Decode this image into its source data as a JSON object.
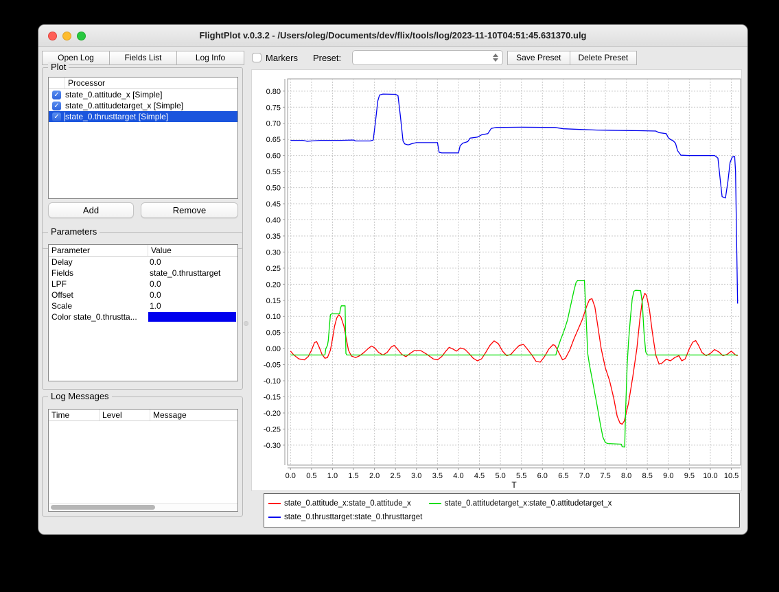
{
  "window": {
    "title": "FlightPlot v.0.3.2 - /Users/oleg/Documents/dev/flix/tools/log/2023-11-10T04:51:45.631370.ulg"
  },
  "toolbar": {
    "open_log": "Open Log",
    "fields_list": "Fields List",
    "log_info": "Log Info",
    "markers_label": "Markers",
    "markers_checked": false,
    "preset_label": "Preset:",
    "preset_value": "",
    "save_preset": "Save Preset",
    "delete_preset": "Delete Preset"
  },
  "plot_panel": {
    "title": "Plot",
    "column_header": "Processor",
    "rows": [
      {
        "checked": true,
        "label": "state_0.attitude_x [Simple]",
        "selected": false
      },
      {
        "checked": true,
        "label": "state_0.attitudetarget_x [Simple]",
        "selected": false
      },
      {
        "checked": true,
        "label": "state_0.thrusttarget [Simple]",
        "selected": true
      }
    ],
    "add_button": "Add",
    "remove_button": "Remove"
  },
  "parameters_panel": {
    "title": "Parameters",
    "columns": [
      "Parameter",
      "Value"
    ],
    "rows": [
      {
        "parameter": "Delay",
        "value": "0.0"
      },
      {
        "parameter": "Fields",
        "value": "state_0.thrusttarget"
      },
      {
        "parameter": "LPF",
        "value": "0.0"
      },
      {
        "parameter": "Offset",
        "value": "0.0"
      },
      {
        "parameter": "Scale",
        "value": "1.0"
      },
      {
        "parameter": "Color state_0.thrustta...",
        "value": "",
        "color_swatch": "#0000ee"
      }
    ]
  },
  "log_messages_panel": {
    "title": "Log Messages",
    "columns": [
      "Time",
      "Level",
      "Message"
    ],
    "rows": []
  },
  "legend": {
    "items": [
      {
        "label": "state_0.attitude_x:state_0.attitude_x",
        "color": "#ff0000"
      },
      {
        "label": "state_0.attitudetarget_x:state_0.attitudetarget_x",
        "color": "#00dd00"
      },
      {
        "label": "state_0.thrusttarget:state_0.thrusttarget",
        "color": "#0000ee"
      }
    ]
  },
  "colors": {
    "selection_blue": "#1b55dd",
    "checkbox_blue": "#2f64dd",
    "grid": "#c9c9c9",
    "axis": "#9a9a9a"
  },
  "chart_data": {
    "type": "line",
    "title": "",
    "xlabel": "T",
    "ylabel": "",
    "grid": true,
    "legend_position": "bottom",
    "xlim": [
      -0.07,
      10.72
    ],
    "ylim": [
      -0.362,
      0.838
    ],
    "xticks": [
      0.0,
      0.5,
      1.0,
      1.5,
      2.0,
      2.5,
      3.0,
      3.5,
      4.0,
      4.5,
      5.0,
      5.5,
      6.0,
      6.5,
      7.0,
      7.5,
      8.0,
      8.5,
      9.0,
      9.5,
      10.0,
      10.5
    ],
    "yticks": [
      -0.3,
      -0.25,
      -0.2,
      -0.15,
      -0.1,
      -0.05,
      0.0,
      0.05,
      0.1,
      0.15,
      0.2,
      0.25,
      0.3,
      0.35,
      0.4,
      0.45,
      0.5,
      0.55,
      0.6,
      0.65,
      0.7,
      0.75,
      0.8
    ],
    "series": [
      {
        "name": "state_0.attitude_x:state_0.attitude_x",
        "color": "#ff0000",
        "points": [
          [
            0,
            -0.008
          ],
          [
            0.08,
            -0.02
          ],
          [
            0.2,
            -0.032
          ],
          [
            0.33,
            -0.035
          ],
          [
            0.42,
            -0.025
          ],
          [
            0.5,
            -0.005
          ],
          [
            0.57,
            0.018
          ],
          [
            0.62,
            0.022
          ],
          [
            0.68,
            0.005
          ],
          [
            0.75,
            -0.018
          ],
          [
            0.82,
            -0.03
          ],
          [
            0.88,
            -0.028
          ],
          [
            0.95,
            -0.005
          ],
          [
            1.0,
            0.03
          ],
          [
            1.05,
            0.07
          ],
          [
            1.1,
            0.095
          ],
          [
            1.15,
            0.105
          ],
          [
            1.2,
            0.098
          ],
          [
            1.27,
            0.07
          ],
          [
            1.33,
            0.03
          ],
          [
            1.38,
            -0.005
          ],
          [
            1.45,
            -0.023
          ],
          [
            1.55,
            -0.028
          ],
          [
            1.65,
            -0.022
          ],
          [
            1.75,
            -0.012
          ],
          [
            1.85,
            0.0
          ],
          [
            1.93,
            0.008
          ],
          [
            2.0,
            0.003
          ],
          [
            2.1,
            -0.012
          ],
          [
            2.2,
            -0.02
          ],
          [
            2.3,
            -0.012
          ],
          [
            2.4,
            0.005
          ],
          [
            2.47,
            0.01
          ],
          [
            2.55,
            -0.002
          ],
          [
            2.65,
            -0.018
          ],
          [
            2.75,
            -0.025
          ],
          [
            2.85,
            -0.015
          ],
          [
            2.95,
            -0.006
          ],
          [
            3.1,
            -0.006
          ],
          [
            3.25,
            -0.018
          ],
          [
            3.4,
            -0.032
          ],
          [
            3.5,
            -0.035
          ],
          [
            3.6,
            -0.025
          ],
          [
            3.7,
            -0.008
          ],
          [
            3.78,
            0.004
          ],
          [
            3.88,
            -0.002
          ],
          [
            3.95,
            -0.008
          ],
          [
            4.05,
            0.002
          ],
          [
            4.15,
            -0.002
          ],
          [
            4.25,
            -0.015
          ],
          [
            4.35,
            -0.03
          ],
          [
            4.45,
            -0.038
          ],
          [
            4.55,
            -0.032
          ],
          [
            4.65,
            -0.012
          ],
          [
            4.75,
            0.01
          ],
          [
            4.85,
            0.024
          ],
          [
            4.95,
            0.015
          ],
          [
            5.05,
            -0.008
          ],
          [
            5.15,
            -0.022
          ],
          [
            5.25,
            -0.018
          ],
          [
            5.35,
            -0.003
          ],
          [
            5.45,
            0.01
          ],
          [
            5.55,
            0.013
          ],
          [
            5.65,
            -0.003
          ],
          [
            5.75,
            -0.02
          ],
          [
            5.85,
            -0.04
          ],
          [
            5.95,
            -0.042
          ],
          [
            6.05,
            -0.025
          ],
          [
            6.15,
            -0.002
          ],
          [
            6.25,
            0.012
          ],
          [
            6.3,
            0.01
          ],
          [
            6.4,
            -0.015
          ],
          [
            6.48,
            -0.035
          ],
          [
            6.55,
            -0.03
          ],
          [
            6.65,
            -0.005
          ],
          [
            6.75,
            0.03
          ],
          [
            6.85,
            0.06
          ],
          [
            6.95,
            0.09
          ],
          [
            7.05,
            0.13
          ],
          [
            7.12,
            0.152
          ],
          [
            7.18,
            0.155
          ],
          [
            7.25,
            0.13
          ],
          [
            7.32,
            0.07
          ],
          [
            7.4,
            0.0
          ],
          [
            7.5,
            -0.06
          ],
          [
            7.6,
            -0.1
          ],
          [
            7.7,
            -0.155
          ],
          [
            7.78,
            -0.21
          ],
          [
            7.85,
            -0.232
          ],
          [
            7.9,
            -0.235
          ],
          [
            7.95,
            -0.225
          ],
          [
            8.05,
            -0.17
          ],
          [
            8.15,
            -0.09
          ],
          [
            8.25,
            0.0
          ],
          [
            8.32,
            0.09
          ],
          [
            8.38,
            0.15
          ],
          [
            8.44,
            0.172
          ],
          [
            8.48,
            0.165
          ],
          [
            8.55,
            0.12
          ],
          [
            8.62,
            0.05
          ],
          [
            8.7,
            -0.02
          ],
          [
            8.78,
            -0.048
          ],
          [
            8.85,
            -0.045
          ],
          [
            8.95,
            -0.033
          ],
          [
            9.05,
            -0.038
          ],
          [
            9.15,
            -0.028
          ],
          [
            9.25,
            -0.022
          ],
          [
            9.32,
            -0.038
          ],
          [
            9.4,
            -0.032
          ],
          [
            9.5,
            0.0
          ],
          [
            9.58,
            0.02
          ],
          [
            9.65,
            0.025
          ],
          [
            9.72,
            0.01
          ],
          [
            9.8,
            -0.012
          ],
          [
            9.9,
            -0.022
          ],
          [
            10.0,
            -0.015
          ],
          [
            10.1,
            -0.003
          ],
          [
            10.2,
            -0.01
          ],
          [
            10.3,
            -0.022
          ],
          [
            10.4,
            -0.018
          ],
          [
            10.5,
            -0.008
          ],
          [
            10.6,
            -0.02
          ],
          [
            10.65,
            -0.022
          ]
        ]
      },
      {
        "name": "state_0.attitudetarget_x:state_0.attitudetarget_x",
        "color": "#00dd00",
        "points": [
          [
            0,
            -0.02
          ],
          [
            0.82,
            -0.02
          ],
          [
            0.84,
            0.0
          ],
          [
            0.88,
            0.01
          ],
          [
            0.9,
            0.025
          ],
          [
            0.92,
            0.06
          ],
          [
            0.95,
            0.105
          ],
          [
            0.98,
            0.108
          ],
          [
            1.17,
            0.108
          ],
          [
            1.19,
            0.125
          ],
          [
            1.21,
            0.133
          ],
          [
            1.3,
            0.133
          ],
          [
            1.32,
            -0.015
          ],
          [
            1.34,
            -0.02
          ],
          [
            6.32,
            -0.02
          ],
          [
            6.36,
            0.0
          ],
          [
            6.4,
            0.015
          ],
          [
            6.44,
            0.03
          ],
          [
            6.5,
            0.05
          ],
          [
            6.54,
            0.065
          ],
          [
            6.6,
            0.09
          ],
          [
            6.65,
            0.12
          ],
          [
            6.7,
            0.15
          ],
          [
            6.75,
            0.18
          ],
          [
            6.8,
            0.205
          ],
          [
            6.84,
            0.212
          ],
          [
            7.0,
            0.212
          ],
          [
            7.04,
            0.1
          ],
          [
            7.08,
            -0.015
          ],
          [
            7.12,
            -0.05
          ],
          [
            7.2,
            -0.105
          ],
          [
            7.3,
            -0.175
          ],
          [
            7.38,
            -0.235
          ],
          [
            7.44,
            -0.275
          ],
          [
            7.5,
            -0.292
          ],
          [
            7.56,
            -0.295
          ],
          [
            7.88,
            -0.297
          ],
          [
            7.9,
            -0.305
          ],
          [
            7.96,
            -0.306
          ],
          [
            7.98,
            -0.2
          ],
          [
            8.02,
            -0.05
          ],
          [
            8.05,
            0.02
          ],
          [
            8.1,
            0.1
          ],
          [
            8.14,
            0.155
          ],
          [
            8.18,
            0.178
          ],
          [
            8.22,
            0.181
          ],
          [
            8.34,
            0.18
          ],
          [
            8.38,
            0.14
          ],
          [
            8.42,
            0.05
          ],
          [
            8.46,
            -0.01
          ],
          [
            8.5,
            -0.02
          ],
          [
            10.65,
            -0.02
          ]
        ]
      },
      {
        "name": "state_0.thrusttarget:state_0.thrusttarget",
        "color": "#0000ee",
        "points": [
          [
            0,
            0.647
          ],
          [
            0.3,
            0.647
          ],
          [
            0.4,
            0.644
          ],
          [
            0.5,
            0.645
          ],
          [
            0.7,
            0.647
          ],
          [
            1.2,
            0.647
          ],
          [
            1.5,
            0.648
          ],
          [
            1.55,
            0.645
          ],
          [
            1.9,
            0.645
          ],
          [
            1.97,
            0.648
          ],
          [
            2.02,
            0.7
          ],
          [
            2.08,
            0.77
          ],
          [
            2.12,
            0.788
          ],
          [
            2.2,
            0.791
          ],
          [
            2.5,
            0.79
          ],
          [
            2.56,
            0.786
          ],
          [
            2.62,
            0.72
          ],
          [
            2.68,
            0.645
          ],
          [
            2.72,
            0.636
          ],
          [
            2.8,
            0.633
          ],
          [
            2.9,
            0.637
          ],
          [
            3.0,
            0.64
          ],
          [
            3.5,
            0.64
          ],
          [
            3.54,
            0.61
          ],
          [
            3.6,
            0.608
          ],
          [
            4.0,
            0.608
          ],
          [
            4.04,
            0.63
          ],
          [
            4.1,
            0.638
          ],
          [
            4.22,
            0.643
          ],
          [
            4.28,
            0.654
          ],
          [
            4.45,
            0.657
          ],
          [
            4.55,
            0.664
          ],
          [
            4.7,
            0.668
          ],
          [
            4.78,
            0.684
          ],
          [
            4.9,
            0.687
          ],
          [
            5.5,
            0.688
          ],
          [
            6.3,
            0.687
          ],
          [
            6.5,
            0.683
          ],
          [
            6.9,
            0.681
          ],
          [
            7.3,
            0.679
          ],
          [
            7.8,
            0.678
          ],
          [
            8.3,
            0.677
          ],
          [
            8.7,
            0.676
          ],
          [
            8.78,
            0.671
          ],
          [
            8.95,
            0.668
          ],
          [
            9.0,
            0.655
          ],
          [
            9.05,
            0.65
          ],
          [
            9.12,
            0.645
          ],
          [
            9.17,
            0.638
          ],
          [
            9.22,
            0.615
          ],
          [
            9.3,
            0.601
          ],
          [
            9.5,
            0.6
          ],
          [
            10.1,
            0.6
          ],
          [
            10.18,
            0.592
          ],
          [
            10.24,
            0.52
          ],
          [
            10.28,
            0.472
          ],
          [
            10.36,
            0.468
          ],
          [
            10.42,
            0.52
          ],
          [
            10.47,
            0.578
          ],
          [
            10.52,
            0.595
          ],
          [
            10.58,
            0.597
          ],
          [
            10.6,
            0.55
          ],
          [
            10.63,
            0.3
          ],
          [
            10.65,
            0.14
          ]
        ]
      }
    ]
  }
}
